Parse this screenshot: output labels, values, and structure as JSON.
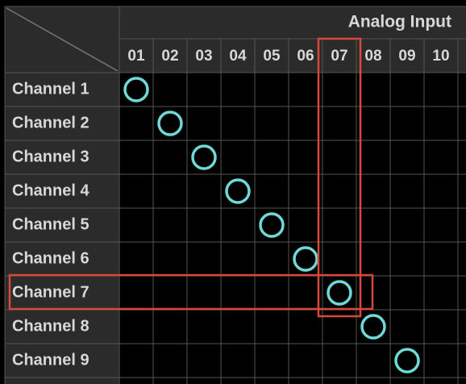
{
  "header": {
    "title": "Analog Input"
  },
  "columns": [
    "01",
    "02",
    "03",
    "04",
    "05",
    "06",
    "07",
    "08",
    "09",
    "10"
  ],
  "rows": [
    "Channel 1",
    "Channel 2",
    "Channel 3",
    "Channel 4",
    "Channel 5",
    "Channel 6",
    "Channel 7",
    "Channel 8",
    "Channel 9"
  ],
  "routes": [
    0,
    1,
    2,
    3,
    4,
    5,
    6,
    7,
    8
  ],
  "highlight": {
    "row": 6,
    "column": 6
  }
}
